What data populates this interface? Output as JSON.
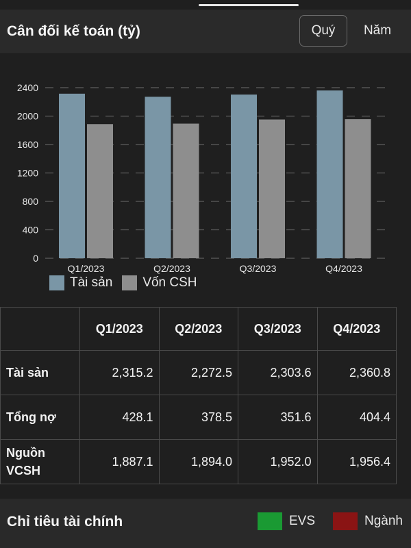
{
  "header": {
    "title": "Cân đối kế toán (tỷ)",
    "period_options": [
      {
        "label": "Quý",
        "active": true
      },
      {
        "label": "Năm",
        "active": false
      }
    ]
  },
  "chart_data": {
    "type": "bar",
    "categories": [
      "Q1/2023",
      "Q2/2023",
      "Q3/2023",
      "Q4/2023"
    ],
    "series": [
      {
        "name": "Tài sản",
        "values": [
          2315.2,
          2272.5,
          2303.6,
          2360.8
        ],
        "color": "#7a96a6"
      },
      {
        "name": "Vốn CSH",
        "values": [
          1887.1,
          1894.0,
          1952.0,
          1956.4
        ],
        "color": "#8e8e8e"
      }
    ],
    "y_ticks": [
      0,
      400,
      800,
      1200,
      1600,
      2000,
      2400
    ],
    "ylim": [
      0,
      2400
    ],
    "grid": true,
    "legend_position": "bottom-left"
  },
  "table": {
    "columns": [
      "Q1/2023",
      "Q2/2023",
      "Q3/2023",
      "Q4/2023"
    ],
    "rows": [
      {
        "label": "Tài sản",
        "values": [
          "2,315.2",
          "2,272.5",
          "2,303.6",
          "2,360.8"
        ]
      },
      {
        "label": "Tổng nợ",
        "values": [
          "428.1",
          "378.5",
          "351.6",
          "404.4"
        ]
      },
      {
        "label_line1": "Nguồn",
        "label_line2": "VCSH",
        "values": [
          "1,887.1",
          "1,894.0",
          "1,952.0",
          "1,956.4"
        ]
      }
    ]
  },
  "footer": {
    "title": "Chỉ tiêu tài chính",
    "legend": [
      {
        "label": "EVS",
        "color": "#1a9a33"
      },
      {
        "label": "Ngành",
        "color": "#8a1414"
      }
    ]
  }
}
